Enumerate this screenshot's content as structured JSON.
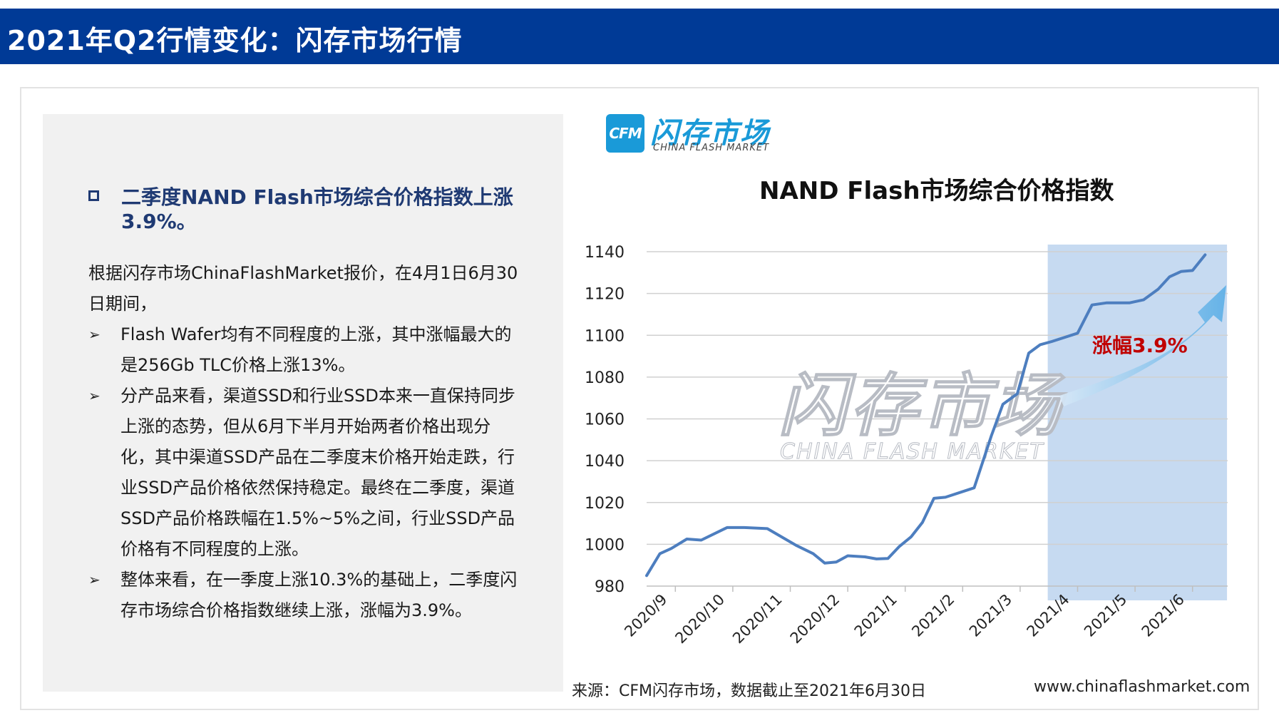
{
  "header": {
    "title": "2021年Q2行情变化：闪存市场行情"
  },
  "left_panel": {
    "headline": "二季度NAND Flash市场综合价格指数上涨3.9%。",
    "intro": "根据闪存市场ChinaFlashMarket报价，在4月1日6月30日期间，",
    "bullets": [
      "Flash Wafer均有不同程度的上涨，其中涨幅最大的是256Gb TLC价格上涨13%。",
      "分产品来看，渠道SSD和行业SSD本来一直保持同步上涨的态势，但从6月下半月开始两者价格出现分化，其中渠道SSD产品在二季度末价格开始走跌，行业SSD产品价格依然保持稳定。最终在二季度，渠道SSD产品价格跌幅在1.5%~5%之间，行业SSD产品价格有不同程度的上涨。",
      "整体来看，在一季度上涨10.3%的基础上，二季度闪存市场综合价格指数继续上涨，涨幅为3.9%。"
    ]
  },
  "logo": {
    "box_text": "CFM",
    "cn": "闪存市场",
    "en": "CHINA FLASH MARKET"
  },
  "watermark": {
    "cn": "闪存市场",
    "en": "CHINA FLASH MARKET"
  },
  "footer": {
    "source": "来源：CFM闪存市场，数据截止至2021年6月30日",
    "website": "www.chinaflashmarket.com"
  },
  "chart_data": {
    "type": "line",
    "title": "NAND Flash市场综合价格指数",
    "xlabel": "",
    "ylabel": "",
    "categories": [
      "2020/9",
      "2020/10",
      "2020/11",
      "2020/12",
      "2021/1",
      "2021/2",
      "2021/3",
      "2021/4",
      "2021/5",
      "2021/6"
    ],
    "y_ticks": [
      980,
      1000,
      1020,
      1040,
      1060,
      1080,
      1100,
      1120,
      1140
    ],
    "ylim": [
      980,
      1140
    ],
    "series": [
      {
        "name": "",
        "color": "#4d7ebf",
        "points": [
          [
            0,
            985
          ],
          [
            0.23,
            995.5
          ],
          [
            0.43,
            998
          ],
          [
            0.7,
            1002.5
          ],
          [
            0.95,
            1002
          ],
          [
            1.4,
            1008
          ],
          [
            1.7,
            1008
          ],
          [
            2.1,
            1007.5
          ],
          [
            2.6,
            999.5
          ],
          [
            2.9,
            995.5
          ],
          [
            3.1,
            991
          ],
          [
            3.3,
            991.5
          ],
          [
            3.5,
            994.5
          ],
          [
            3.8,
            994
          ],
          [
            4.0,
            993
          ],
          [
            4.2,
            993.2
          ],
          [
            4.4,
            999
          ],
          [
            4.6,
            1003.5
          ],
          [
            4.8,
            1010.5
          ],
          [
            5.0,
            1022
          ],
          [
            5.2,
            1022.5
          ],
          [
            5.7,
            1027
          ],
          [
            6.0,
            1052
          ],
          [
            6.2,
            1067
          ],
          [
            6.45,
            1072
          ],
          [
            6.65,
            1091.5
          ],
          [
            6.85,
            1095.5
          ],
          [
            7.05,
            1097
          ],
          [
            7.5,
            1101
          ],
          [
            7.75,
            1114.5
          ],
          [
            8.0,
            1115.5
          ],
          [
            8.4,
            1115.5
          ],
          [
            8.65,
            1117
          ],
          [
            8.9,
            1122
          ],
          [
            9.1,
            1128
          ],
          [
            9.3,
            1130.5
          ],
          [
            9.5,
            1131
          ],
          [
            9.72,
            1138.5
          ]
        ]
      }
    ],
    "highlight": {
      "x_range": [
        6.98,
        10.1
      ],
      "label": "涨幅3.9%",
      "label_color": "#c00000",
      "fill_color": "#bcd4ee"
    },
    "grid": true
  }
}
